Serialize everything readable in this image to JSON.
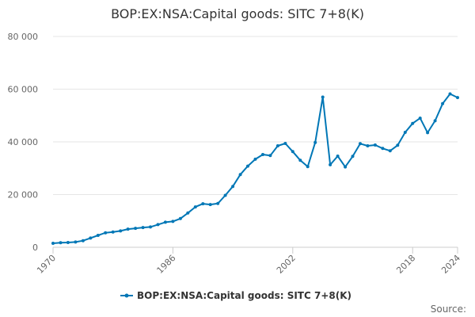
{
  "colors": {
    "series": "#0077b6",
    "grid": "#e6e6e6",
    "axis": "#cccccc"
  },
  "source_label": "Source:",
  "chart_data": {
    "type": "line",
    "title": "BOP:EX:NSA:Capital goods: SITC 7+8(K)",
    "xlabel": "",
    "ylabel": "",
    "xlim": [
      1970,
      2024
    ],
    "ylim": [
      0,
      80000
    ],
    "x_ticks": [
      "1970",
      "1986",
      "2002",
      "2018",
      "2024"
    ],
    "y_ticks": [
      "0",
      "20 000",
      "40 000",
      "60 000",
      "80 000"
    ],
    "grid": true,
    "legend_position": "bottom",
    "series": [
      {
        "name": "BOP:EX:NSA:Capital goods: SITC 7+8(K)",
        "x": [
          1970,
          1971,
          1972,
          1973,
          1974,
          1975,
          1976,
          1977,
          1978,
          1979,
          1980,
          1981,
          1982,
          1983,
          1984,
          1985,
          1986,
          1987,
          1988,
          1989,
          1990,
          1991,
          1992,
          1993,
          1994,
          1995,
          1996,
          1997,
          1998,
          1999,
          2000,
          2001,
          2002,
          2003,
          2004,
          2005,
          2006,
          2007,
          2008,
          2009,
          2010,
          2011,
          2012,
          2013,
          2014,
          2015,
          2016,
          2017,
          2018,
          2019,
          2020,
          2021,
          2022,
          2023,
          2024
        ],
        "values": [
          1500,
          1700,
          1800,
          2000,
          2500,
          3500,
          4500,
          5500,
          5800,
          6200,
          6900,
          7200,
          7500,
          7700,
          8600,
          9500,
          9800,
          10900,
          13000,
          15300,
          16500,
          16200,
          16600,
          19700,
          23100,
          27600,
          30800,
          33400,
          35200,
          34800,
          38500,
          39400,
          36300,
          33000,
          30600,
          39800,
          57000,
          31300,
          34600,
          30500,
          34500,
          39300,
          38500,
          38800,
          37500,
          36600,
          38700,
          43600,
          47000,
          49000,
          43500,
          48000,
          54500,
          58200,
          56800
        ]
      }
    ]
  }
}
